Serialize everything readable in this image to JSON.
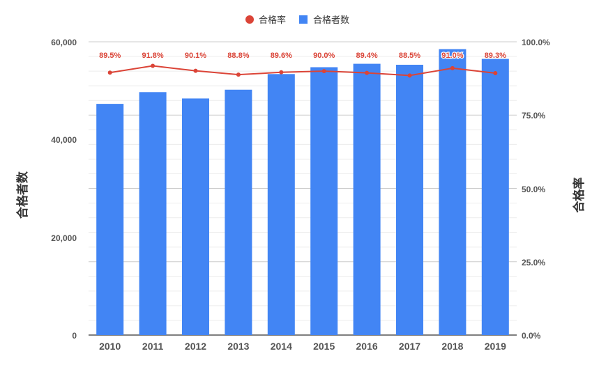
{
  "chart_data": {
    "type": "bar",
    "categories": [
      "2010",
      "2011",
      "2012",
      "2013",
      "2014",
      "2015",
      "2016",
      "2017",
      "2018",
      "2019"
    ],
    "series": [
      {
        "name": "合格者数",
        "type": "bar",
        "axis": "left",
        "color": "#4285f4",
        "values": [
          47300,
          49700,
          48400,
          50200,
          53400,
          54800,
          55500,
          55300,
          58500,
          56500
        ]
      },
      {
        "name": "合格率",
        "type": "line",
        "axis": "right",
        "color": "#db4437",
        "values": [
          89.5,
          91.8,
          90.1,
          88.8,
          89.6,
          90.0,
          89.4,
          88.5,
          91.0,
          89.3
        ],
        "labels": [
          "89.5%",
          "91.8%",
          "90.1%",
          "88.8%",
          "89.6%",
          "90.0%",
          "89.4%",
          "88.5%",
          "91.0%",
          "89.3%"
        ]
      }
    ],
    "ylabel_left": "合格者数",
    "ylabel_right": "合格率",
    "ylim_left": [
      0,
      60000
    ],
    "ylim_right": [
      0,
      100
    ],
    "yticks_left": [
      "0",
      "20,000",
      "40,000",
      "60,000"
    ],
    "yticks_right": [
      "0.0%",
      "25.0%",
      "50.0%",
      "75.0%",
      "100.0%"
    ],
    "legend": [
      "合格率",
      "合格者数"
    ],
    "legend_position": "top-center",
    "grid": true
  }
}
